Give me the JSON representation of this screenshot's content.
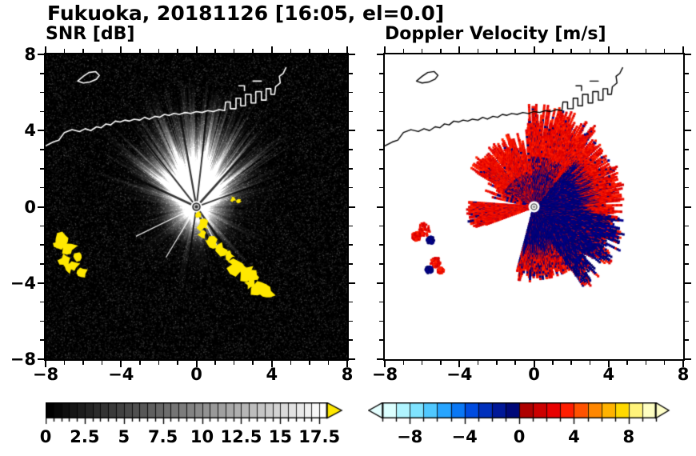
{
  "title": "Fukuoka, 20181126 [16:05, el=0.0]",
  "panels": {
    "snr": {
      "title": "SNR [dB]",
      "x_tick_labels": [
        "−8",
        "−4",
        "0",
        "4",
        "8"
      ],
      "y_tick_labels": [
        "8",
        "4",
        "0",
        "−4",
        "−8"
      ]
    },
    "doppler": {
      "title": "Doppler Velocity [m/s]",
      "x_tick_labels": [
        "−8",
        "−4",
        "0",
        "4",
        "8"
      ]
    }
  },
  "colorbars": {
    "snr": {
      "tick_labels": [
        "0",
        "2.5",
        "5",
        "7.5",
        "10",
        "12.5",
        "15",
        "17.5"
      ],
      "tick_values": [
        0,
        2.5,
        5,
        7.5,
        10,
        12.5,
        15,
        17.5
      ],
      "range": [
        0,
        18
      ],
      "scale": "grayscale-black-to-white",
      "overflow_color": "#ffe800"
    },
    "doppler": {
      "tick_labels": [
        "−8",
        "−4",
        "0",
        "4",
        "8"
      ],
      "tick_values": [
        -8,
        -4,
        0,
        4,
        8
      ],
      "range": [
        -10,
        10
      ],
      "underflow_color": "#e4ffff",
      "overflow_color": "#ffffc8",
      "segment_colors": [
        "#dcffff",
        "#b0f4ff",
        "#7fe3ff",
        "#50c8ff",
        "#28a5ff",
        "#0a78f5",
        "#004ce0",
        "#0030bc",
        "#001898",
        "#000878",
        "#ae0000",
        "#cc0000",
        "#e80000",
        "#ff1e00",
        "#ff5200",
        "#ff8700",
        "#ffb300",
        "#ffd900",
        "#fff37a",
        "#ffffc2"
      ]
    }
  },
  "chart_data": [
    {
      "type": "heatmap",
      "title": "SNR [dB]",
      "xlim": [
        -8,
        8
      ],
      "ylim": [
        -8,
        8
      ],
      "x_ticks": [
        -8,
        -4,
        0,
        4,
        8
      ],
      "y_ticks": [
        8,
        4,
        0,
        -4,
        -8
      ],
      "minor_tick_step": 1,
      "value_range": [
        0,
        18
      ],
      "background": "#000000",
      "radar_center": [
        0,
        0
      ],
      "spokes_deg": [
        206,
        239,
        298
      ],
      "shadow_rays_deg": [
        100,
        83.5,
        48,
        20,
        128,
        155,
        262,
        290,
        305
      ],
      "clutter_color": "#ffe800",
      "clutter_patches": [
        {
          "x": 0.12,
          "y": -0.45,
          "r": 0.18
        },
        {
          "x": 0.38,
          "y": -0.95,
          "r": 0.28
        },
        {
          "x": 0.3,
          "y": -1.45,
          "r": 0.22
        },
        {
          "x": 0.85,
          "y": -1.9,
          "r": 0.3
        },
        {
          "x": 1.25,
          "y": -2.25,
          "r": 0.33
        },
        {
          "x": 1.7,
          "y": -2.6,
          "r": 0.28
        },
        {
          "x": 2.1,
          "y": -3.15,
          "r": 0.38
        },
        {
          "x": 2.6,
          "y": -3.45,
          "r": 0.42
        },
        {
          "x": 3.05,
          "y": -3.65,
          "r": 0.3
        },
        {
          "x": 3.3,
          "y": -4.25,
          "r": 0.42
        },
        {
          "x": 3.75,
          "y": -4.5,
          "r": 0.35
        },
        {
          "x": 2.85,
          "y": -4.05,
          "r": 0.25
        },
        {
          "x": 1.95,
          "y": 0.42,
          "r": 0.14
        },
        {
          "x": 2.25,
          "y": 0.3,
          "r": 0.11
        },
        {
          "x": -7.1,
          "y": -1.7,
          "r": 0.32
        },
        {
          "x": -6.8,
          "y": -2.2,
          "r": 0.38
        },
        {
          "x": -7.0,
          "y": -2.8,
          "r": 0.28
        },
        {
          "x": -6.6,
          "y": -3.1,
          "r": 0.32
        },
        {
          "x": -6.3,
          "y": -2.6,
          "r": 0.22
        },
        {
          "x": -6.1,
          "y": -3.45,
          "r": 0.27
        },
        {
          "x": -7.35,
          "y": -2.05,
          "r": 0.22
        }
      ],
      "description": "PPI radar scan: bright radial SNR fan strongest toward north over black speckle-noise background, yellow ground clutter arcs to the south-southeast and far southwest, Fukuoka coastline drawn in white along the top"
    },
    {
      "type": "heatmap",
      "title": "Doppler Velocity [m/s]",
      "xlim": [
        -8,
        8
      ],
      "ylim": [
        -8,
        8
      ],
      "x_ticks": [
        -8,
        -4,
        0,
        4,
        8
      ],
      "y_ticks": [
        8,
        4,
        0,
        -4,
        -8
      ],
      "minor_tick_step": 1,
      "value_range": [
        -10,
        10
      ],
      "background": "#ffffff",
      "radar_center": [
        0,
        0
      ],
      "positive_color": "#e80000",
      "negative_color": "#000080",
      "echo_sectors": [
        {
          "a0": -105,
          "a1": -58,
          "rmax": 3.3
        },
        {
          "a0": -58,
          "a1": -12,
          "rmax": 4.3
        },
        {
          "a0": -12,
          "a1": 50,
          "rmax": 4.1
        },
        {
          "a0": 50,
          "a1": 95,
          "rmax": 4.5
        },
        {
          "a0": 95,
          "a1": 150,
          "rmax": 3.4
        },
        {
          "a0": 150,
          "a1": 168,
          "rmax": 2.3,
          "sparse": true
        },
        {
          "a0": 176,
          "a1": 200,
          "rmax": 3.1,
          "red": true
        }
      ],
      "notch_deg": [
        [
          82.5,
          84
        ],
        [
          96.5,
          99
        ],
        [
          104,
          106
        ],
        [
          128,
          130
        ]
      ],
      "side_patches": [
        {
          "x": -5.9,
          "y": -1.2,
          "r": 0.35,
          "c": "red"
        },
        {
          "x": -6.3,
          "y": -1.55,
          "r": 0.25,
          "c": "red"
        },
        {
          "x": -5.55,
          "y": -1.75,
          "r": 0.2,
          "c": "navy"
        },
        {
          "x": -5.3,
          "y": -2.9,
          "r": 0.28,
          "c": "red"
        },
        {
          "x": -5.62,
          "y": -3.3,
          "r": 0.2,
          "c": "navy"
        },
        {
          "x": -5.0,
          "y": -3.35,
          "r": 0.17,
          "c": "red"
        }
      ],
      "description": "Doppler velocity field: red (receding) across the northern half and a wedge pointing west, dark navy (approaching) band through east to south, small mixed patches southwest, coastline drawn in black"
    }
  ],
  "coastline": {
    "mainland": [
      [
        -8,
        3.2
      ],
      [
        -7.6,
        3.4
      ],
      [
        -7.3,
        3.5
      ],
      [
        -7.0,
        3.9
      ],
      [
        -6.6,
        4.05
      ],
      [
        -6.2,
        3.95
      ],
      [
        -5.9,
        4.1
      ],
      [
        -5.6,
        4.0
      ],
      [
        -5.3,
        4.2
      ],
      [
        -5.05,
        4.15
      ],
      [
        -4.8,
        4.35
      ],
      [
        -4.55,
        4.3
      ],
      [
        -4.3,
        4.5
      ],
      [
        -4.05,
        4.45
      ],
      [
        -3.8,
        4.55
      ],
      [
        -3.55,
        4.5
      ],
      [
        -3.3,
        4.6
      ],
      [
        -3.0,
        4.55
      ],
      [
        -2.75,
        4.7
      ],
      [
        -2.5,
        4.6
      ],
      [
        -2.2,
        4.75
      ],
      [
        -1.95,
        4.7
      ],
      [
        -1.7,
        4.85
      ],
      [
        -1.45,
        4.8
      ],
      [
        -1.2,
        4.9
      ],
      [
        -0.9,
        4.85
      ],
      [
        -0.6,
        4.95
      ],
      [
        -0.3,
        4.9
      ],
      [
        0,
        5.0
      ],
      [
        0.3,
        4.95
      ],
      [
        0.6,
        5.05
      ],
      [
        0.9,
        5.0
      ],
      [
        1.2,
        5.1
      ],
      [
        1.5,
        5.05
      ],
      [
        1.55,
        5.5
      ],
      [
        1.8,
        5.5
      ],
      [
        1.8,
        5.15
      ],
      [
        2.1,
        5.15
      ],
      [
        2.1,
        5.7
      ],
      [
        2.35,
        5.7
      ],
      [
        2.35,
        5.3
      ],
      [
        2.6,
        5.3
      ],
      [
        2.6,
        5.9
      ],
      [
        2.9,
        5.9
      ],
      [
        2.9,
        5.45
      ],
      [
        3.15,
        5.45
      ],
      [
        3.15,
        6.05
      ],
      [
        3.45,
        6.05
      ],
      [
        3.45,
        5.6
      ],
      [
        3.7,
        5.6
      ],
      [
        3.7,
        6.2
      ],
      [
        3.95,
        6.2
      ],
      [
        3.95,
        5.9
      ],
      [
        4.15,
        5.9
      ],
      [
        4.2,
        6.3
      ],
      [
        4.45,
        6.5
      ],
      [
        4.4,
        6.85
      ],
      [
        4.6,
        7.0
      ],
      [
        4.75,
        7.3
      ]
    ],
    "island": [
      [
        -6.3,
        6.6
      ],
      [
        -6.0,
        6.85
      ],
      [
        -5.7,
        7.05
      ],
      [
        -5.35,
        7.1
      ],
      [
        -5.15,
        6.9
      ],
      [
        -5.3,
        6.7
      ],
      [
        -5.65,
        6.55
      ],
      [
        -6.0,
        6.5
      ],
      [
        -6.3,
        6.6
      ]
    ],
    "breakwaters": [
      [
        [
          2.25,
          6.35
        ],
        [
          2.55,
          6.35
        ],
        [
          2.55,
          6.1
        ]
      ],
      [
        [
          3.0,
          6.6
        ],
        [
          3.45,
          6.6
        ]
      ]
    ]
  }
}
